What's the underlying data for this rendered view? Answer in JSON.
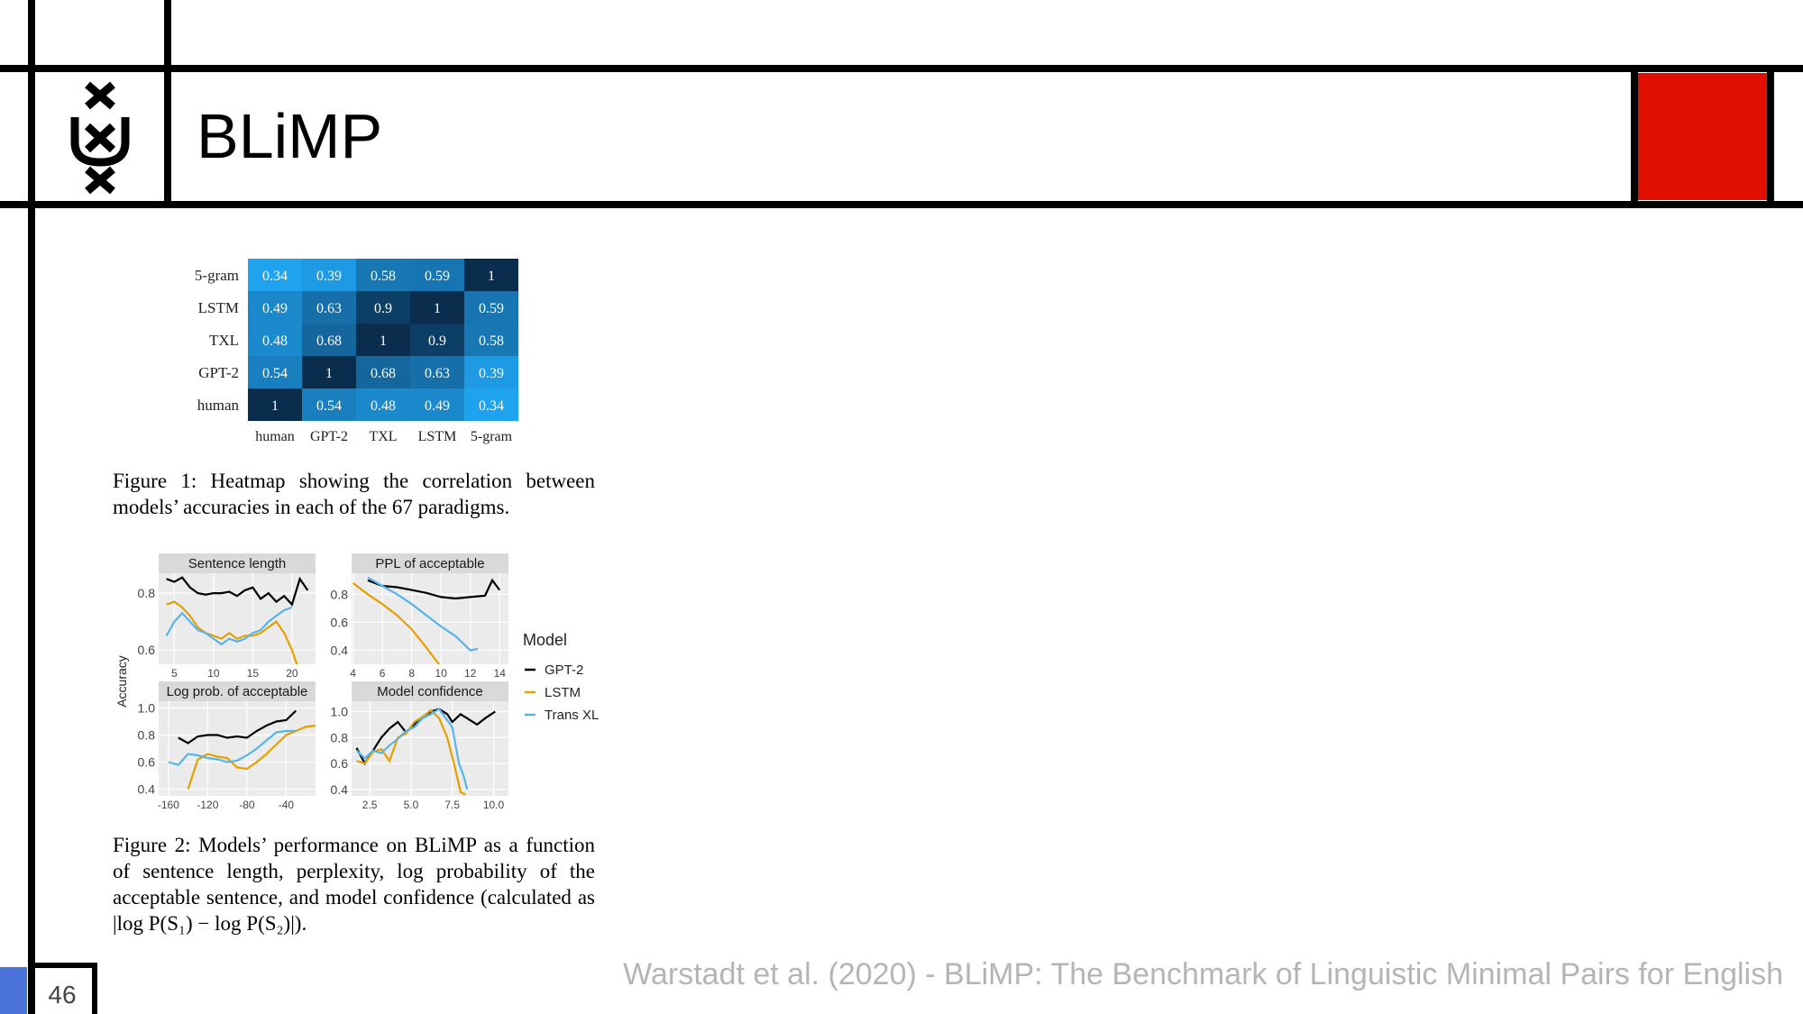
{
  "slide": {
    "title": "BLiMP",
    "page_number": "46",
    "citation": "Warstadt et al. (2020) - BLiMP: The Benchmark of Linguistic Minimal Pairs for English",
    "colors": {
      "red_block": "#e00f00",
      "blue_tab": "#4a72d8"
    },
    "logo_icon": "uva-crosses-logo"
  },
  "figure1": {
    "caption": "Figure 1: Heatmap showing the correlation between models’ accuracies in each of the 67 paradigms."
  },
  "figure2": {
    "caption": "Figure 2: Models’ performance on BLiMP as a function of sentence length, perplexity, log probability of the acceptable sentence, and model confidence (calculated as |log P(S₁) − log P(S₂)|)."
  },
  "chart_data": [
    {
      "type": "heatmap",
      "rows": [
        "5-gram",
        "LSTM",
        "TXL",
        "GPT-2",
        "human"
      ],
      "columns": [
        "human",
        "GPT-2",
        "TXL",
        "LSTM",
        "5-gram"
      ],
      "values": [
        [
          0.34,
          0.39,
          0.58,
          0.59,
          1
        ],
        [
          0.49,
          0.63,
          0.9,
          1,
          0.59
        ],
        [
          0.48,
          0.68,
          1,
          0.9,
          0.58
        ],
        [
          0.54,
          1,
          0.68,
          0.63,
          0.39
        ],
        [
          1,
          0.54,
          0.48,
          0.49,
          0.34
        ]
      ],
      "labels": [
        [
          "0.34",
          "0.39",
          "0.58",
          "0.59",
          "1"
        ],
        [
          "0.49",
          "0.63",
          "0.9",
          "1",
          "0.59"
        ],
        [
          "0.48",
          "0.68",
          "1",
          "0.9",
          "0.58"
        ],
        [
          "0.54",
          "1",
          "0.68",
          "0.63",
          "0.39"
        ],
        [
          "1",
          "0.54",
          "0.48",
          "0.49",
          "0.34"
        ]
      ],
      "color_low": "#1fa3ef",
      "color_high": "#0a2d4d"
    },
    {
      "type": "line",
      "ylabel": "Accuracy",
      "legend": {
        "title": "Model",
        "position": "right"
      },
      "series_names": [
        "GPT-2",
        "LSTM",
        "Trans XL"
      ],
      "series_colors": [
        "#000000",
        "#e69f00",
        "#56b4e9"
      ],
      "panels": [
        {
          "title": "Sentence length",
          "xlim": [
            3,
            23
          ],
          "ylim": [
            0.55,
            0.87
          ],
          "xticks": [
            5,
            10,
            15,
            20
          ],
          "xtick_labels": [
            "5",
            "10",
            "15",
            "20"
          ],
          "yticks": [
            0.6,
            0.8
          ],
          "ytick_labels": [
            "0.6",
            "0.8"
          ],
          "series": [
            {
              "name": "GPT-2",
              "x": [
                4,
                5,
                6,
                7,
                8,
                9,
                10,
                11,
                12,
                13,
                14,
                15,
                16,
                17,
                18,
                19,
                20,
                21,
                22
              ],
              "y": [
                0.85,
                0.84,
                0.855,
                0.82,
                0.8,
                0.795,
                0.8,
                0.8,
                0.805,
                0.79,
                0.81,
                0.82,
                0.78,
                0.8,
                0.77,
                0.79,
                0.76,
                0.85,
                0.81
              ]
            },
            {
              "name": "LSTM",
              "x": [
                4,
                5,
                6,
                7,
                8,
                9,
                10,
                11,
                12,
                13,
                14,
                15,
                16,
                17,
                18,
                19,
                20,
                21
              ],
              "y": [
                0.76,
                0.77,
                0.75,
                0.72,
                0.68,
                0.66,
                0.65,
                0.64,
                0.66,
                0.64,
                0.65,
                0.65,
                0.66,
                0.68,
                0.7,
                0.66,
                0.6,
                0.52
              ]
            },
            {
              "name": "Trans XL",
              "x": [
                4,
                5,
                6,
                7,
                8,
                9,
                10,
                11,
                12,
                13,
                14,
                15,
                16,
                17,
                18,
                19,
                20
              ],
              "y": [
                0.65,
                0.7,
                0.73,
                0.7,
                0.67,
                0.66,
                0.64,
                0.62,
                0.64,
                0.63,
                0.64,
                0.66,
                0.67,
                0.7,
                0.72,
                0.74,
                0.75
              ]
            }
          ]
        },
        {
          "title": "PPL of acceptable",
          "xlim": [
            3.9,
            14.6
          ],
          "ylim": [
            0.3,
            0.95
          ],
          "xticks": [
            4,
            6,
            8,
            10,
            12,
            14
          ],
          "xtick_labels": [
            "4",
            "6",
            "8",
            "10",
            "12",
            "14"
          ],
          "yticks": [
            0.4,
            0.6,
            0.8
          ],
          "ytick_labels": [
            "0.4",
            "0.6",
            "0.8"
          ],
          "series": [
            {
              "name": "GPT-2",
              "x": [
                5,
                6,
                7,
                8,
                9,
                10,
                11,
                12,
                13,
                13.5,
                14
              ],
              "y": [
                0.9,
                0.86,
                0.85,
                0.83,
                0.81,
                0.78,
                0.77,
                0.78,
                0.79,
                0.9,
                0.83
              ]
            },
            {
              "name": "LSTM",
              "x": [
                4,
                5,
                6,
                7,
                8,
                9,
                10,
                11
              ],
              "y": [
                0.88,
                0.8,
                0.73,
                0.65,
                0.55,
                0.42,
                0.28,
                0.1
              ]
            },
            {
              "name": "Trans XL",
              "x": [
                5,
                6,
                7,
                8,
                9,
                10,
                11,
                12,
                12.5
              ],
              "y": [
                0.92,
                0.86,
                0.8,
                0.73,
                0.65,
                0.57,
                0.5,
                0.4,
                0.41
              ]
            }
          ]
        },
        {
          "title": "Log prob. of acceptable",
          "xlim": [
            -170,
            -10
          ],
          "ylim": [
            0.35,
            1.05
          ],
          "xticks": [
            -160,
            -120,
            -80,
            -40
          ],
          "xtick_labels": [
            "-160",
            "-120",
            "-80",
            "-40"
          ],
          "yticks": [
            0.4,
            0.6,
            0.8,
            1.0
          ],
          "ytick_labels": [
            "0.4",
            "0.6",
            "0.8",
            "1.0"
          ],
          "series": [
            {
              "name": "GPT-2",
              "x": [
                -150,
                -140,
                -130,
                -120,
                -110,
                -100,
                -90,
                -80,
                -70,
                -60,
                -50,
                -40,
                -30
              ],
              "y": [
                0.78,
                0.74,
                0.79,
                0.8,
                0.8,
                0.78,
                0.79,
                0.78,
                0.83,
                0.87,
                0.9,
                0.91,
                0.98
              ]
            },
            {
              "name": "LSTM",
              "x": [
                -140,
                -130,
                -120,
                -110,
                -100,
                -90,
                -80,
                -70,
                -60,
                -50,
                -40,
                -30,
                -20,
                -10
              ],
              "y": [
                0.4,
                0.62,
                0.66,
                0.64,
                0.63,
                0.56,
                0.55,
                0.6,
                0.66,
                0.73,
                0.8,
                0.83,
                0.86,
                0.87
              ]
            },
            {
              "name": "Trans XL",
              "x": [
                -160,
                -150,
                -140,
                -130,
                -120,
                -110,
                -100,
                -90,
                -80,
                -70,
                -60,
                -50,
                -40,
                -30
              ],
              "y": [
                0.6,
                0.58,
                0.66,
                0.65,
                0.63,
                0.62,
                0.6,
                0.61,
                0.65,
                0.7,
                0.76,
                0.82,
                0.83,
                0.83
              ]
            }
          ]
        },
        {
          "title": "Model confidence",
          "xlim": [
            1.4,
            10.9
          ],
          "ylim": [
            0.35,
            1.08
          ],
          "xticks": [
            2.5,
            5.0,
            7.5,
            10.0
          ],
          "xtick_labels": [
            "2.5",
            "5.0",
            "7.5",
            "10.0"
          ],
          "yticks": [
            0.4,
            0.6,
            0.8,
            1.0
          ],
          "ytick_labels": [
            "0.4",
            "0.6",
            "0.8",
            "1.0"
          ],
          "series": [
            {
              "name": "GPT-2",
              "x": [
                1.7,
                2.2,
                2.7,
                3.2,
                3.7,
                4.2,
                4.7,
                5.2,
                5.7,
                6.2,
                6.7,
                7.2,
                7.5,
                8,
                8.5,
                9,
                9.5,
                10.1
              ],
              "y": [
                0.72,
                0.6,
                0.7,
                0.8,
                0.87,
                0.92,
                0.84,
                0.9,
                0.95,
                1.0,
                1.02,
                0.98,
                0.92,
                0.98,
                0.94,
                0.9,
                0.95,
                1.0
              ]
            },
            {
              "name": "LSTM",
              "x": [
                1.7,
                2.2,
                2.7,
                3.2,
                3.7,
                4.2,
                4.7,
                5.2,
                5.7,
                6.2,
                6.7,
                7.2,
                7.6,
                8.0,
                8.3
              ],
              "y": [
                0.62,
                0.6,
                0.69,
                0.71,
                0.62,
                0.8,
                0.83,
                0.92,
                0.96,
                1.01,
                0.95,
                0.8,
                0.6,
                0.38,
                0.36
              ]
            },
            {
              "name": "Trans XL",
              "x": [
                1.7,
                2.2,
                2.7,
                3.2,
                3.7,
                4.2,
                4.7,
                5.2,
                5.7,
                6.2,
                6.7,
                7.1,
                7.5,
                7.9,
                8.2,
                8.4
              ],
              "y": [
                0.7,
                0.64,
                0.7,
                0.68,
                0.74,
                0.79,
                0.85,
                0.88,
                0.95,
                0.98,
                1.02,
                0.95,
                0.88,
                0.6,
                0.5,
                0.4
              ]
            }
          ]
        }
      ]
    }
  ]
}
